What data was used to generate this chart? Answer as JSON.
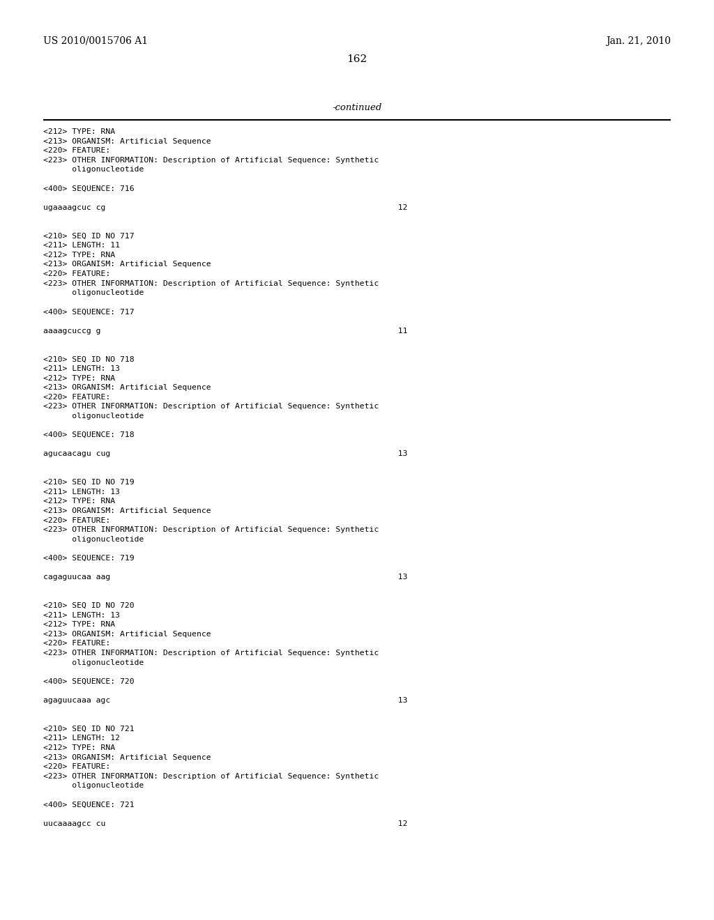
{
  "bg_color": "#ffffff",
  "header_left": "US 2010/0015706 A1",
  "header_right": "Jan. 21, 2010",
  "page_number": "162",
  "continued_text": "-continued",
  "content": [
    "<212> TYPE: RNA",
    "<213> ORGANISM: Artificial Sequence",
    "<220> FEATURE:",
    "<223> OTHER INFORMATION: Description of Artificial Sequence: Synthetic",
    "      oligonucleotide",
    "",
    "<400> SEQUENCE: 716",
    "",
    "ugaaaagcuc cg                                                             12",
    "",
    "",
    "<210> SEQ ID NO 717",
    "<211> LENGTH: 11",
    "<212> TYPE: RNA",
    "<213> ORGANISM: Artificial Sequence",
    "<220> FEATURE:",
    "<223> OTHER INFORMATION: Description of Artificial Sequence: Synthetic",
    "      oligonucleotide",
    "",
    "<400> SEQUENCE: 717",
    "",
    "aaaagcuccg g                                                              11",
    "",
    "",
    "<210> SEQ ID NO 718",
    "<211> LENGTH: 13",
    "<212> TYPE: RNA",
    "<213> ORGANISM: Artificial Sequence",
    "<220> FEATURE:",
    "<223> OTHER INFORMATION: Description of Artificial Sequence: Synthetic",
    "      oligonucleotide",
    "",
    "<400> SEQUENCE: 718",
    "",
    "agucaacagu cug                                                            13",
    "",
    "",
    "<210> SEQ ID NO 719",
    "<211> LENGTH: 13",
    "<212> TYPE: RNA",
    "<213> ORGANISM: Artificial Sequence",
    "<220> FEATURE:",
    "<223> OTHER INFORMATION: Description of Artificial Sequence: Synthetic",
    "      oligonucleotide",
    "",
    "<400> SEQUENCE: 719",
    "",
    "cagaguucaa aag                                                            13",
    "",
    "",
    "<210> SEQ ID NO 720",
    "<211> LENGTH: 13",
    "<212> TYPE: RNA",
    "<213> ORGANISM: Artificial Sequence",
    "<220> FEATURE:",
    "<223> OTHER INFORMATION: Description of Artificial Sequence: Synthetic",
    "      oligonucleotide",
    "",
    "<400> SEQUENCE: 720",
    "",
    "agaguucaaa agc                                                            13",
    "",
    "",
    "<210> SEQ ID NO 721",
    "<211> LENGTH: 12",
    "<212> TYPE: RNA",
    "<213> ORGANISM: Artificial Sequence",
    "<220> FEATURE:",
    "<223> OTHER INFORMATION: Description of Artificial Sequence: Synthetic",
    "      oligonucleotide",
    "",
    "<400> SEQUENCE: 721",
    "",
    "uucaaaagcc cu                                                             12"
  ]
}
